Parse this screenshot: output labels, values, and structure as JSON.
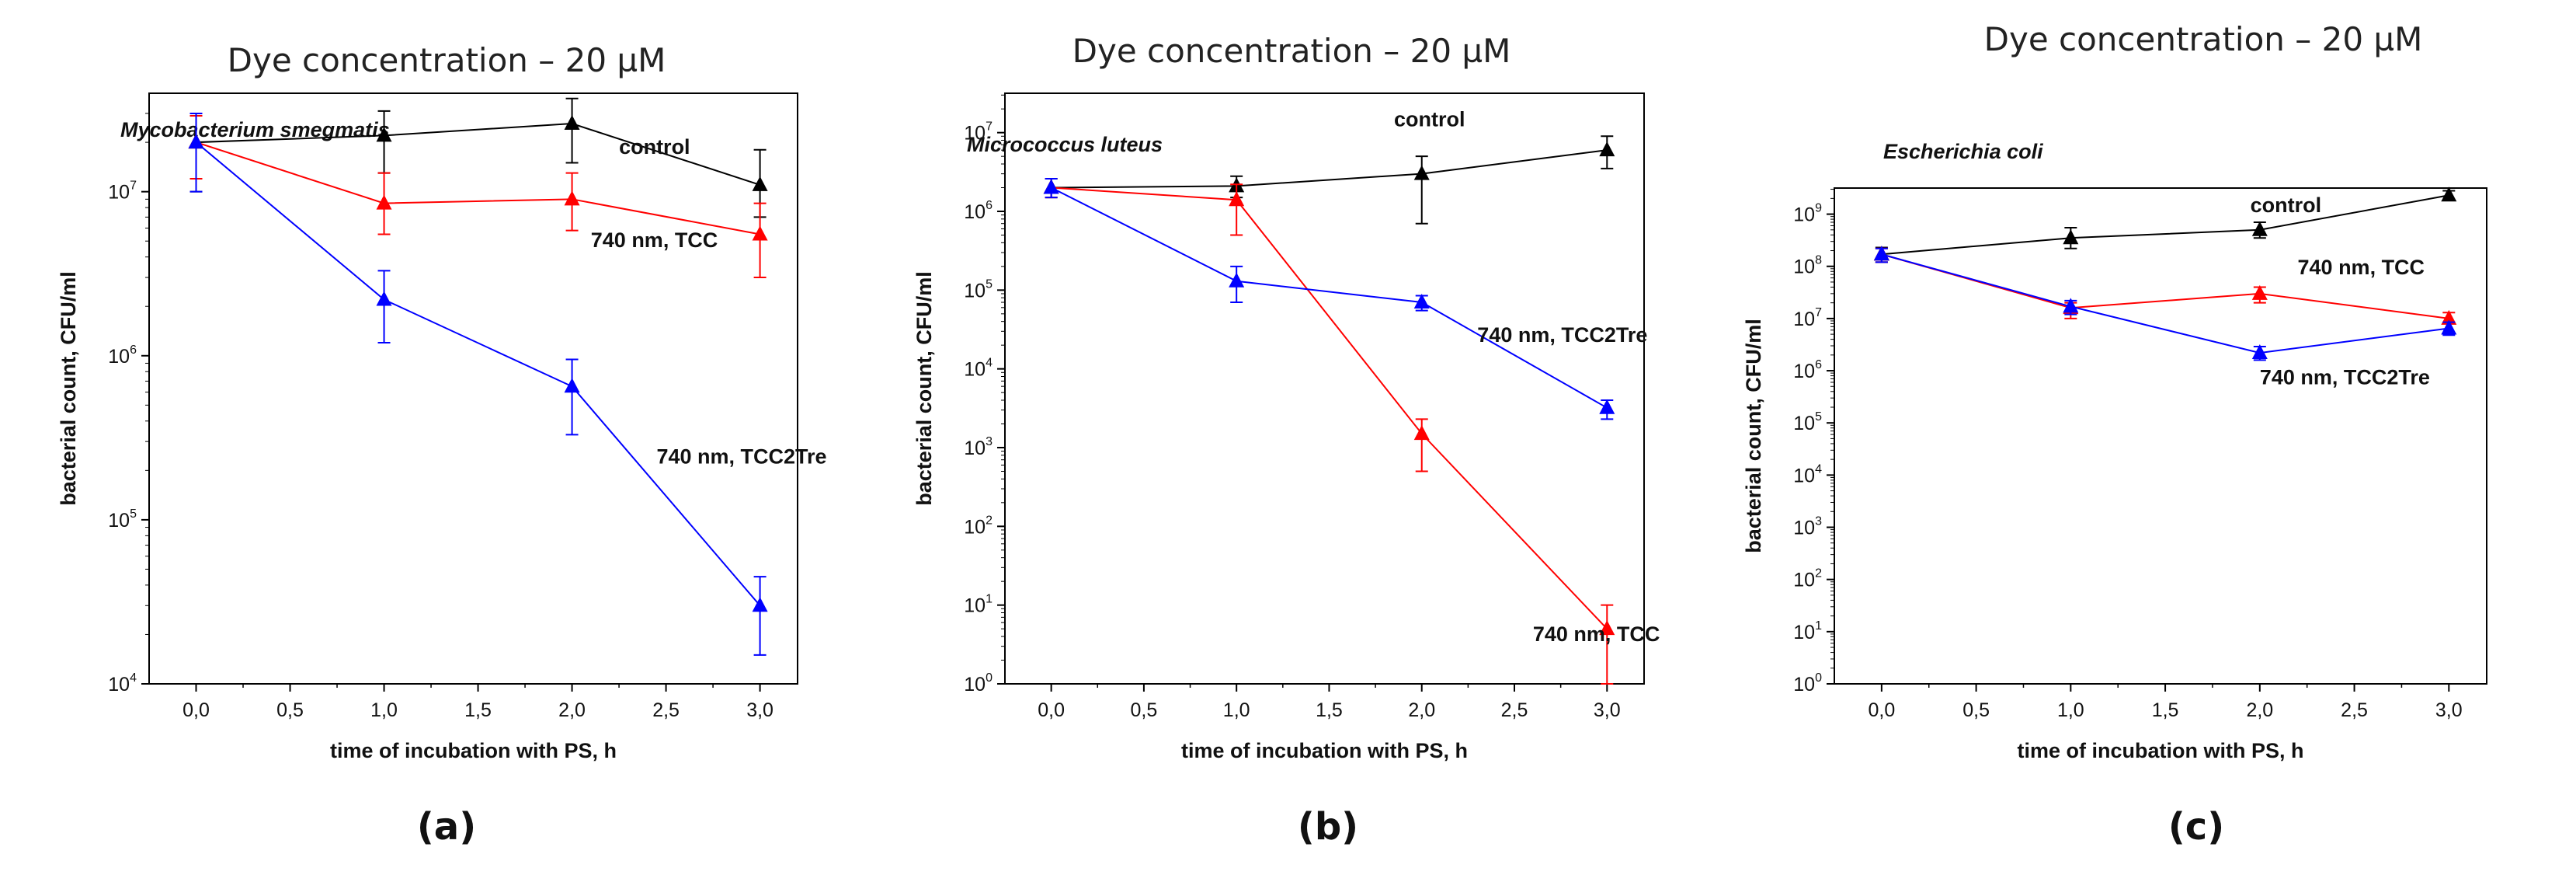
{
  "chart_data": [
    {
      "type": "line",
      "panel_label": "(a)",
      "heading": "Dye concentration – 20 µM",
      "title": "Mycobacterium smegmatis",
      "xlabel": "time of incubation with PS, h",
      "ylabel": "bacterial count, CFU/ml",
      "x_ticks": [
        "0,0",
        "0,5",
        "1,0",
        "1,5",
        "2,0",
        "2,5",
        "3,0"
      ],
      "xlim": [
        -0.25,
        3.2
      ],
      "y_scale": "log",
      "y_ticks": [
        4,
        5,
        6,
        7
      ],
      "ylim": [
        4,
        7.6
      ],
      "x": [
        0,
        1,
        2,
        3
      ],
      "series": [
        {
          "name": "control",
          "color": "#000000",
          "values": [
            20000000.0,
            22000000.0,
            26000000.0,
            11000000.0
          ],
          "err_hi": [
            30000000.0,
            31000000.0,
            37000000.0,
            18000000.0
          ],
          "err_lo": [
            10000000.0,
            13000000.0,
            15000000.0,
            7000000.0
          ],
          "label_x": 2.25,
          "label_y": 17000000.0
        },
        {
          "name": "740 nm, TCC",
          "color": "#ff0000",
          "values": [
            20000000.0,
            8500000.0,
            9000000.0,
            5500000.0
          ],
          "err_hi": [
            29000000.0,
            13000000.0,
            13000000.0,
            8500000.0
          ],
          "err_lo": [
            12000000.0,
            5500000.0,
            5800000.0,
            3000000.0
          ],
          "label_x": 2.1,
          "label_y": 4600000.0
        },
        {
          "name": "740 nm, TCC2Tre",
          "color": "#0000ff",
          "values": [
            20000000.0,
            2200000.0,
            650000.0,
            30000.0
          ],
          "err_hi": [
            30000000.0,
            3300000.0,
            950000.0,
            45000.0
          ],
          "err_lo": [
            10000000.0,
            1200000.0,
            330000.0,
            15000.0
          ],
          "label_x": 2.45,
          "label_y": 220000.0
        }
      ]
    },
    {
      "type": "line",
      "panel_label": "(b)",
      "heading": "Dye concentration – 20 µM",
      "title": "Micrococcus luteus",
      "xlabel": "time of incubation with PS, h",
      "ylabel": "bacterial count, CFU/ml",
      "x_ticks": [
        "0,0",
        "0,5",
        "1,0",
        "1,5",
        "2,0",
        "2,5",
        "3,0"
      ],
      "xlim": [
        -0.25,
        3.2
      ],
      "y_scale": "log",
      "y_ticks": [
        0,
        1,
        2,
        3,
        4,
        5,
        6,
        7
      ],
      "ylim": [
        0,
        7.5
      ],
      "x": [
        0,
        1,
        2,
        3
      ],
      "series": [
        {
          "name": "control",
          "color": "#000000",
          "values": [
            2000000.0,
            2100000.0,
            3000000.0,
            6000000.0
          ],
          "err_hi": [
            2600000.0,
            2800000.0,
            5000000.0,
            9000000.0
          ],
          "err_lo": [
            1500000.0,
            1500000.0,
            700000.0,
            3500000.0
          ],
          "label_x": 1.85,
          "label_y": 12000000.0
        },
        {
          "name": "740 nm, TCC",
          "color": "#ff0000",
          "values": [
            2000000.0,
            1400000.0,
            1500.0,
            5.0
          ],
          "err_hi": [
            2600000.0,
            2200000.0,
            2300.0,
            10
          ],
          "err_lo": [
            1500000.0,
            500000.0,
            500.0,
            1.0
          ],
          "label_x": 2.6,
          "label_y": 3.5
        },
        {
          "name": "740 nm, TCC2Tre",
          "color": "#0000ff",
          "values": [
            2000000.0,
            130000.0,
            70000.0,
            3200.0
          ],
          "err_hi": [
            2600000.0,
            200000.0,
            85000.0,
            4000.0
          ],
          "err_lo": [
            1500000.0,
            70000.0,
            55000.0,
            2300.0
          ],
          "label_x": 2.3,
          "label_y": 22000.0
        }
      ]
    },
    {
      "type": "line",
      "panel_label": "(c)",
      "heading": "Dye concentration – 20 µM",
      "title": "Escherichia coli",
      "xlabel": "time of incubation with PS, h",
      "ylabel": "bacterial count, CFU/ml",
      "x_ticks": [
        "0,0",
        "0,5",
        "1,0",
        "1,5",
        "2,0",
        "2,5",
        "3,0"
      ],
      "xlim": [
        -0.25,
        3.2
      ],
      "y_scale": "log",
      "y_ticks": [
        0,
        1,
        2,
        3,
        4,
        5,
        6,
        7,
        8,
        9
      ],
      "ylim": [
        0,
        9.5
      ],
      "x": [
        0,
        1,
        2,
        3
      ],
      "series": [
        {
          "name": "control",
          "color": "#000000",
          "values": [
            170000000.0,
            350000000.0,
            500000000.0,
            2300000000.0
          ],
          "err_hi": [
            230000000.0,
            550000000.0,
            700000000.0,
            2800000000.0
          ],
          "err_lo": [
            120000000.0,
            220000000.0,
            350000000.0,
            1900000000.0
          ],
          "label_x": 1.95,
          "label_y": 1100000000.0
        },
        {
          "name": "740 nm, TCC",
          "color": "#ff0000",
          "values": [
            170000000.0,
            16000000.0,
            30000000.0,
            10000000.0
          ],
          "err_hi": [
            220000000.0,
            20000000.0,
            40000000.0,
            13000000.0
          ],
          "err_lo": [
            120000000.0,
            10000000.0,
            20000000.0,
            8000000.0
          ],
          "label_x": 2.2,
          "label_y": 70000000.0
        },
        {
          "name": "740 nm, TCC2Tre",
          "color": "#0000ff",
          "values": [
            170000000.0,
            17000000.0,
            2200000.0,
            6500000.0
          ],
          "err_hi": [
            220000000.0,
            22000000.0,
            2900000.0,
            8500000.0
          ],
          "err_lo": [
            120000000.0,
            12000000.0,
            1600000.0,
            4800000.0
          ],
          "label_x": 2.0,
          "label_y": 550000.0
        }
      ]
    }
  ]
}
